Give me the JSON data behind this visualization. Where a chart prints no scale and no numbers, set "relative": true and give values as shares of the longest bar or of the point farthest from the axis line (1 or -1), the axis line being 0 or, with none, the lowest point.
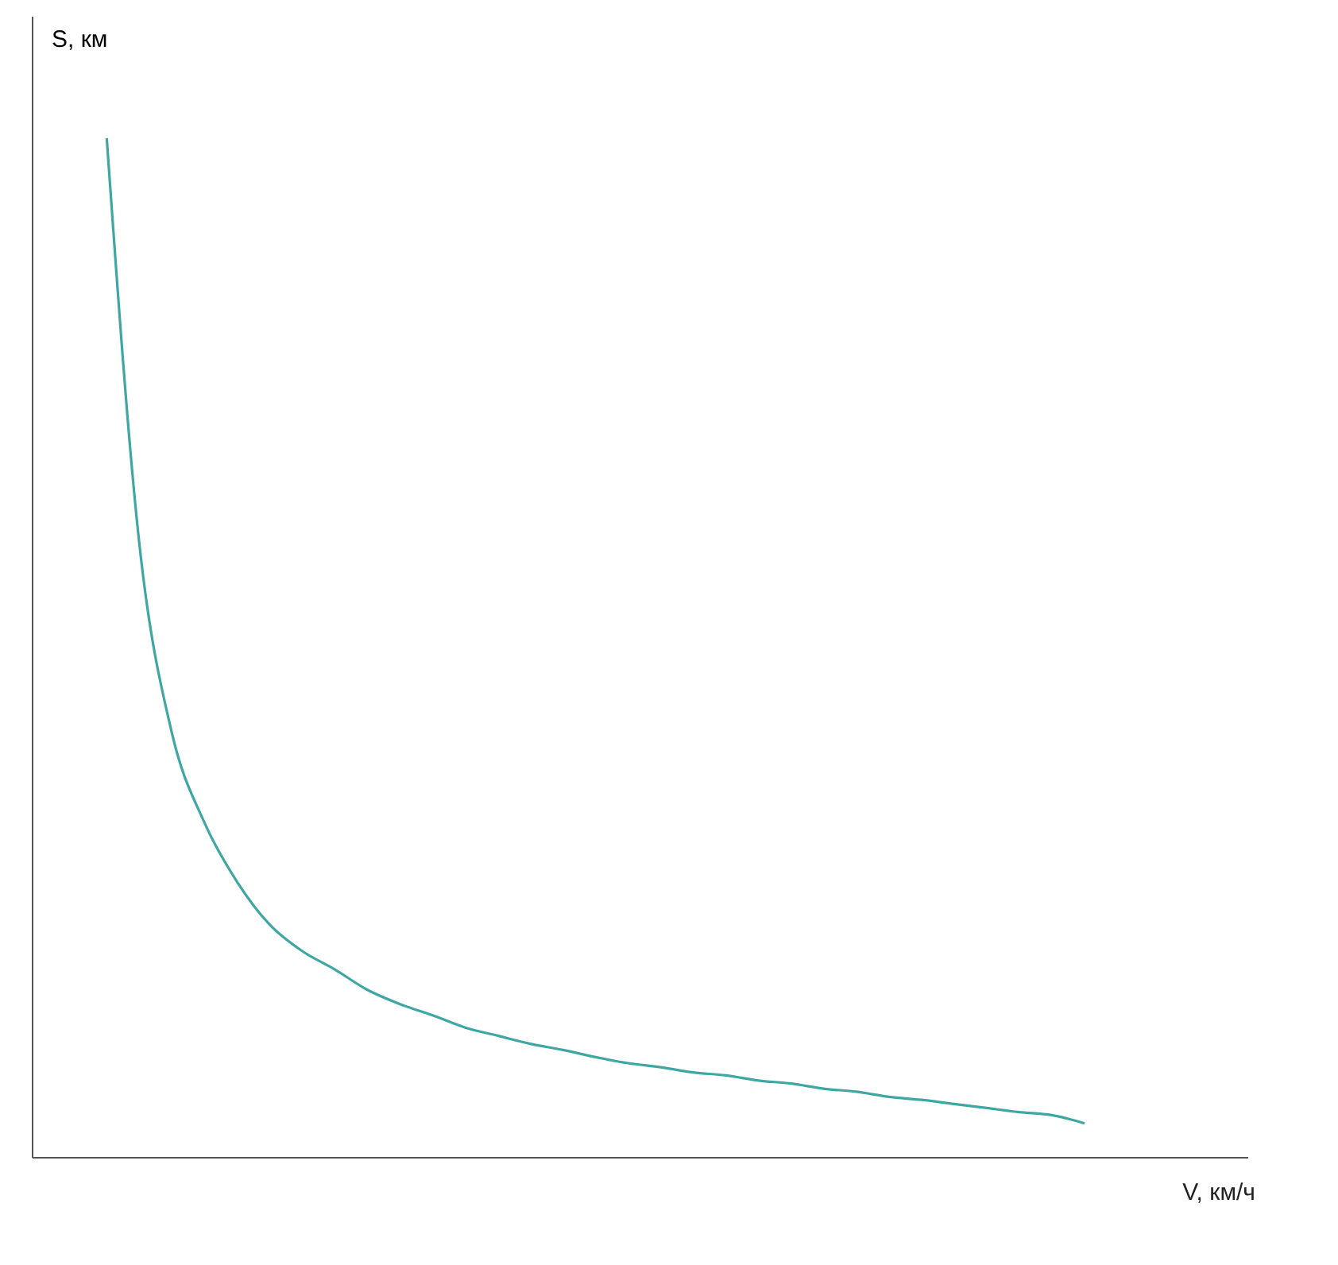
{
  "chart_data": {
    "type": "line",
    "xlabel": "V, км/ч",
    "ylabel": "S, км",
    "relative": true,
    "categories": [
      null,
      null,
      null,
      null,
      null,
      null,
      null,
      null,
      null,
      null,
      null,
      null,
      null,
      null,
      null,
      null,
      null,
      null,
      null,
      null,
      null,
      null,
      null,
      null,
      null,
      null,
      null,
      null,
      null,
      null,
      null
    ],
    "series": [
      {
        "color": "#3fa7a3",
        "values": [
          1,
          0.602,
          0.416,
          0.328,
          0.27,
          0.228,
          0.202,
          0.184,
          0.164,
          0.15,
          0.139,
          0.127,
          0.119,
          0.111,
          0.105,
          0.098,
          0.092,
          0.088,
          0.083,
          0.08,
          0.075,
          0.072,
          0.067,
          0.064,
          0.059,
          0.056,
          0.052,
          0.048,
          0.044,
          0.041,
          0.033
        ]
      }
    ]
  }
}
